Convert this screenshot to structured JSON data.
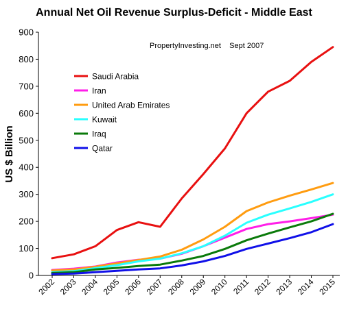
{
  "chart_data": {
    "type": "line",
    "title": "Annual Net Oil Revenue Surplus-Deficit - Middle East",
    "xlabel": "",
    "ylabel": "US $ Billion",
    "annotation": "PropertyInvesting.net    Sept 2007",
    "ylim": [
      0,
      900
    ],
    "yticks": [
      "0",
      "100",
      "200",
      "300",
      "400",
      "500",
      "600",
      "700",
      "800",
      "900"
    ],
    "categories": [
      "2002",
      "2003",
      "2004",
      "2005",
      "2006",
      "2007",
      "2008",
      "2009",
      "2010",
      "2011",
      "2012",
      "2013",
      "2014",
      "2015"
    ],
    "grid": false,
    "legend_position": "top-left",
    "series": [
      {
        "name": "Saudi Arabia",
        "color": "#e81010",
        "x": [
          2002,
          2003,
          2004,
          2005,
          2006,
          2007,
          2008,
          2009,
          2010,
          2011,
          2012,
          2013,
          2014,
          2015
        ],
        "values": [
          64,
          78,
          108,
          168,
          197,
          180,
          285,
          375,
          470,
          600,
          680,
          720,
          790,
          845
        ]
      },
      {
        "name": "Iran",
        "color": "#ff1ee8",
        "x": [
          2002,
          2003,
          2004,
          2005,
          2006,
          2007,
          2008,
          2009,
          2010,
          2011,
          2012,
          2013,
          2014,
          2015
        ],
        "values": [
          20,
          25,
          33,
          48,
          58,
          62,
          80,
          108,
          140,
          172,
          190,
          200,
          212,
          225
        ]
      },
      {
        "name": "United Arab Emirates",
        "color": "#ff9c10",
        "x": [
          2002,
          2003,
          2004,
          2005,
          2006,
          2007,
          2008,
          2009,
          2010,
          2011,
          2012,
          2013,
          2014,
          2015
        ],
        "values": [
          18,
          22,
          32,
          45,
          57,
          70,
          95,
          133,
          180,
          238,
          270,
          295,
          318,
          342
        ]
      },
      {
        "name": "Kuwait",
        "color": "#29ffff",
        "x": [
          2002,
          2003,
          2004,
          2005,
          2006,
          2007,
          2008,
          2009,
          2010,
          2011,
          2012,
          2013,
          2014,
          2015
        ],
        "values": [
          12,
          16,
          27,
          38,
          52,
          62,
          82,
          108,
          147,
          195,
          225,
          248,
          272,
          300
        ]
      },
      {
        "name": "Iraq",
        "color": "#0a7a0a",
        "x": [
          2002,
          2003,
          2004,
          2005,
          2006,
          2007,
          2008,
          2009,
          2010,
          2011,
          2012,
          2013,
          2014,
          2015
        ],
        "values": [
          9,
          12,
          22,
          28,
          35,
          40,
          55,
          72,
          98,
          130,
          155,
          178,
          200,
          228
        ]
      },
      {
        "name": "Qatar",
        "color": "#1010e8",
        "x": [
          2002,
          2003,
          2004,
          2005,
          2006,
          2007,
          2008,
          2009,
          2010,
          2011,
          2012,
          2013,
          2014,
          2015
        ],
        "values": [
          5,
          7,
          12,
          17,
          22,
          26,
          37,
          52,
          72,
          98,
          118,
          138,
          160,
          190
        ]
      }
    ]
  }
}
